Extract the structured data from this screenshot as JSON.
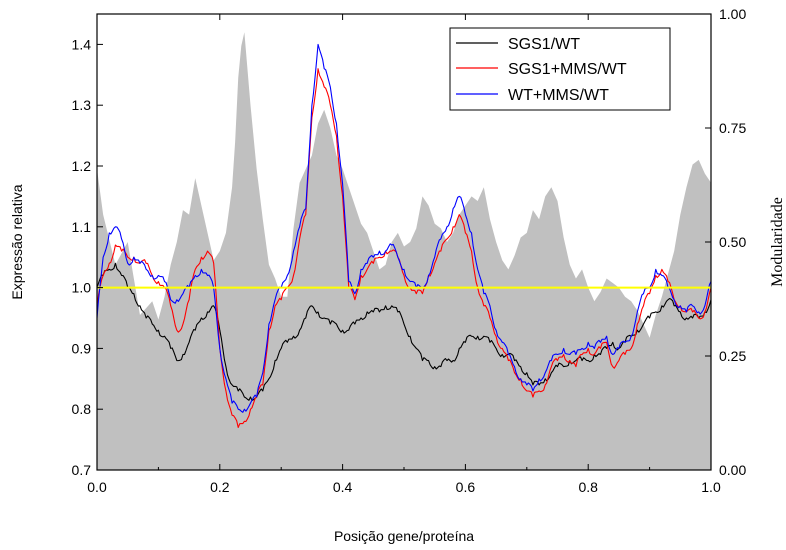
{
  "chart_data": {
    "type": "line",
    "xlabel": "Posição gene/proteína",
    "ylabel": "Expressão relativa",
    "y2label": "Modularidade",
    "xlim": [
      0.0,
      1.0
    ],
    "ylim": [
      0.7,
      1.45
    ],
    "y2lim": [
      0.0,
      1.0
    ],
    "x_ticks": [
      "0.0",
      "0.2",
      "0.4",
      "0.6",
      "0.8",
      "1.0"
    ],
    "y_ticks": [
      "0.7",
      "0.8",
      "0.9",
      "1.0",
      "1.1",
      "1.2",
      "1.3",
      "1.4"
    ],
    "y2_ticks": [
      "0.00",
      "0.25",
      "0.50",
      "0.75",
      "1.00"
    ],
    "legend_position": "top-right",
    "reference_line": {
      "y": 1.0,
      "color": "#ffff00"
    },
    "area": {
      "axis": "right",
      "color": "#c0c0c0",
      "x": [
        0.0,
        0.01,
        0.03,
        0.05,
        0.07,
        0.09,
        0.1,
        0.11,
        0.12,
        0.13,
        0.14,
        0.15,
        0.16,
        0.17,
        0.18,
        0.19,
        0.2,
        0.21,
        0.22,
        0.225,
        0.23,
        0.235,
        0.24,
        0.25,
        0.26,
        0.27,
        0.28,
        0.29,
        0.3,
        0.31,
        0.32,
        0.33,
        0.34,
        0.35,
        0.36,
        0.37,
        0.38,
        0.39,
        0.4,
        0.41,
        0.42,
        0.43,
        0.44,
        0.45,
        0.46,
        0.47,
        0.48,
        0.49,
        0.5,
        0.51,
        0.52,
        0.53,
        0.54,
        0.55,
        0.56,
        0.57,
        0.58,
        0.59,
        0.6,
        0.61,
        0.62,
        0.63,
        0.64,
        0.65,
        0.66,
        0.67,
        0.68,
        0.69,
        0.7,
        0.71,
        0.72,
        0.73,
        0.74,
        0.75,
        0.76,
        0.77,
        0.78,
        0.79,
        0.8,
        0.81,
        0.82,
        0.83,
        0.84,
        0.85,
        0.86,
        0.87,
        0.88,
        0.89,
        0.9,
        0.91,
        0.92,
        0.93,
        0.94,
        0.95,
        0.96,
        0.97,
        0.98,
        0.99,
        1.0
      ],
      "y": [
        0.66,
        0.56,
        0.45,
        0.5,
        0.34,
        0.37,
        0.33,
        0.38,
        0.45,
        0.5,
        0.57,
        0.56,
        0.64,
        0.58,
        0.52,
        0.46,
        0.48,
        0.52,
        0.62,
        0.72,
        0.86,
        0.93,
        0.96,
        0.8,
        0.66,
        0.55,
        0.45,
        0.42,
        0.38,
        0.38,
        0.53,
        0.63,
        0.66,
        0.69,
        0.76,
        0.79,
        0.75,
        0.69,
        0.66,
        0.62,
        0.58,
        0.54,
        0.52,
        0.48,
        0.44,
        0.45,
        0.5,
        0.52,
        0.49,
        0.5,
        0.53,
        0.6,
        0.58,
        0.54,
        0.53,
        0.5,
        0.52,
        0.56,
        0.58,
        0.6,
        0.59,
        0.62,
        0.55,
        0.5,
        0.46,
        0.44,
        0.47,
        0.51,
        0.52,
        0.57,
        0.55,
        0.6,
        0.62,
        0.59,
        0.51,
        0.45,
        0.42,
        0.44,
        0.4,
        0.37,
        0.39,
        0.42,
        0.41,
        0.4,
        0.38,
        0.37,
        0.35,
        0.32,
        0.29,
        0.34,
        0.38,
        0.43,
        0.48,
        0.56,
        0.62,
        0.67,
        0.68,
        0.65,
        0.63
      ]
    },
    "x": [
      0.0,
      0.01,
      0.02,
      0.03,
      0.04,
      0.05,
      0.06,
      0.07,
      0.08,
      0.09,
      0.1,
      0.11,
      0.12,
      0.13,
      0.14,
      0.15,
      0.16,
      0.17,
      0.18,
      0.19,
      0.2,
      0.21,
      0.22,
      0.23,
      0.24,
      0.25,
      0.26,
      0.27,
      0.28,
      0.29,
      0.3,
      0.31,
      0.32,
      0.33,
      0.34,
      0.35,
      0.36,
      0.37,
      0.38,
      0.39,
      0.4,
      0.41,
      0.42,
      0.43,
      0.44,
      0.45,
      0.46,
      0.47,
      0.48,
      0.49,
      0.5,
      0.51,
      0.52,
      0.53,
      0.54,
      0.55,
      0.56,
      0.57,
      0.58,
      0.59,
      0.6,
      0.61,
      0.62,
      0.63,
      0.64,
      0.65,
      0.66,
      0.67,
      0.68,
      0.69,
      0.7,
      0.71,
      0.72,
      0.73,
      0.74,
      0.75,
      0.76,
      0.77,
      0.78,
      0.79,
      0.8,
      0.81,
      0.82,
      0.83,
      0.84,
      0.85,
      0.86,
      0.87,
      0.88,
      0.89,
      0.9,
      0.91,
      0.92,
      0.93,
      0.94,
      0.95,
      0.96,
      0.97,
      0.98,
      0.99,
      1.0
    ],
    "series": [
      {
        "name": "SGS1/WT",
        "color": "#000000",
        "values": [
          1.0,
          1.02,
          1.03,
          1.04,
          1.02,
          1.0,
          0.99,
          0.97,
          0.95,
          0.94,
          0.93,
          0.92,
          0.9,
          0.88,
          0.89,
          0.91,
          0.93,
          0.95,
          0.96,
          0.97,
          0.93,
          0.87,
          0.84,
          0.83,
          0.82,
          0.82,
          0.82,
          0.83,
          0.85,
          0.88,
          0.9,
          0.91,
          0.92,
          0.93,
          0.95,
          0.97,
          0.96,
          0.95,
          0.94,
          0.94,
          0.93,
          0.93,
          0.94,
          0.95,
          0.96,
          0.96,
          0.96,
          0.97,
          0.97,
          0.96,
          0.94,
          0.92,
          0.9,
          0.88,
          0.88,
          0.87,
          0.87,
          0.88,
          0.88,
          0.9,
          0.91,
          0.92,
          0.92,
          0.92,
          0.91,
          0.9,
          0.89,
          0.89,
          0.88,
          0.87,
          0.86,
          0.84,
          0.84,
          0.85,
          0.86,
          0.87,
          0.87,
          0.88,
          0.88,
          0.88,
          0.88,
          0.89,
          0.89,
          0.9,
          0.91,
          0.9,
          0.91,
          0.92,
          0.93,
          0.94,
          0.95,
          0.96,
          0.97,
          0.98,
          0.97,
          0.96,
          0.95,
          0.95,
          0.95,
          0.96,
          0.98
        ]
      },
      {
        "name": "SGS1+MMS/WT",
        "color": "#ff0000",
        "values": [
          0.97,
          1.02,
          1.04,
          1.07,
          1.06,
          1.05,
          1.05,
          1.04,
          1.04,
          1.02,
          1.01,
          1.0,
          0.97,
          0.93,
          0.94,
          0.98,
          1.03,
          1.05,
          1.06,
          1.04,
          0.9,
          0.83,
          0.79,
          0.77,
          0.78,
          0.8,
          0.82,
          0.84,
          0.93,
          0.97,
          0.98,
          1.0,
          1.02,
          1.08,
          1.12,
          1.28,
          1.36,
          1.33,
          1.3,
          1.25,
          1.15,
          1.0,
          0.98,
          1.02,
          1.03,
          1.04,
          1.05,
          1.06,
          1.06,
          1.05,
          1.02,
          1.0,
          0.99,
          0.99,
          1.02,
          1.04,
          1.06,
          1.08,
          1.1,
          1.12,
          1.09,
          1.06,
          1.0,
          0.97,
          0.95,
          0.92,
          0.9,
          0.88,
          0.86,
          0.85,
          0.83,
          0.82,
          0.83,
          0.84,
          0.87,
          0.88,
          0.89,
          0.88,
          0.87,
          0.89,
          0.9,
          0.89,
          0.9,
          0.91,
          0.87,
          0.88,
          0.89,
          0.9,
          0.94,
          0.97,
          0.99,
          1.02,
          1.03,
          1.01,
          0.98,
          0.97,
          0.96,
          0.96,
          0.95,
          0.96,
          1.0
        ]
      },
      {
        "name": "WT+MMS/WT",
        "color": "#0000ff",
        "values": [
          0.95,
          1.05,
          1.09,
          1.1,
          1.08,
          1.04,
          1.05,
          1.04,
          1.03,
          1.02,
          1.02,
          1.01,
          0.98,
          0.98,
          0.99,
          1.0,
          1.02,
          1.03,
          1.02,
          1.0,
          0.9,
          0.85,
          0.81,
          0.8,
          0.8,
          0.81,
          0.82,
          0.86,
          0.94,
          0.98,
          1.0,
          1.02,
          1.06,
          1.1,
          1.13,
          1.3,
          1.4,
          1.36,
          1.33,
          1.27,
          1.17,
          1.01,
          0.99,
          1.03,
          1.04,
          1.05,
          1.06,
          1.06,
          1.07,
          1.05,
          1.03,
          1.01,
          1.0,
          1.0,
          1.02,
          1.05,
          1.08,
          1.1,
          1.13,
          1.15,
          1.12,
          1.09,
          1.03,
          0.99,
          0.97,
          0.93,
          0.91,
          0.89,
          0.87,
          0.85,
          0.84,
          0.83,
          0.85,
          0.86,
          0.88,
          0.89,
          0.9,
          0.89,
          0.89,
          0.9,
          0.91,
          0.9,
          0.91,
          0.92,
          0.89,
          0.9,
          0.91,
          0.92,
          0.96,
          0.99,
          1.0,
          1.03,
          1.02,
          1.0,
          0.98,
          0.97,
          0.96,
          0.97,
          0.96,
          0.97,
          1.01
        ]
      }
    ]
  }
}
